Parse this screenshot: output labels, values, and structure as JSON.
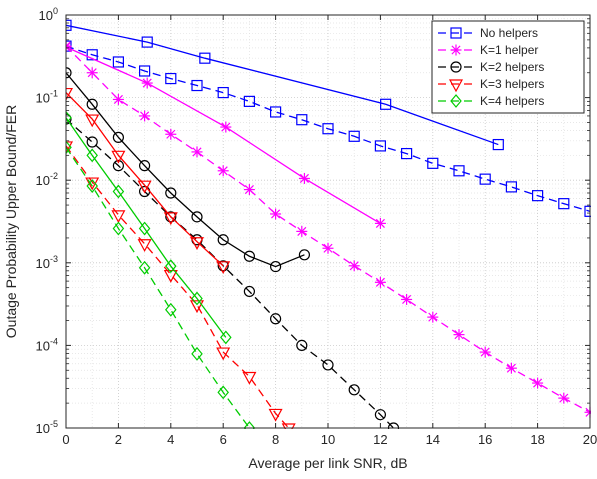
{
  "chart_data": {
    "type": "line",
    "title": "",
    "xlabel": "Average per link SNR, dB",
    "ylabel": "Outage Probability Upper Bound/FER",
    "xlim": [
      0,
      20
    ],
    "ylim": [
      1e-05,
      1
    ],
    "yscale": "log",
    "grid": "major and minor, dotted",
    "legend_position": "top-right",
    "xticks": [
      0,
      2,
      4,
      6,
      8,
      10,
      12,
      14,
      16,
      18,
      20
    ],
    "xtick_labels": [
      "0",
      "2",
      "4",
      "6",
      "8",
      "10",
      "12",
      "14",
      "16",
      "18",
      "20"
    ],
    "yticks": [
      {
        "value": 1,
        "base": "10",
        "exp": "0"
      },
      {
        "value": 0.1,
        "base": "10",
        "exp": "-1"
      },
      {
        "value": 0.01,
        "base": "10",
        "exp": "-2"
      },
      {
        "value": 0.001,
        "base": "10",
        "exp": "-3"
      },
      {
        "value": 0.0001,
        "base": "10",
        "exp": "-4"
      },
      {
        "value": 1e-05,
        "base": "10",
        "exp": "-5"
      }
    ],
    "legend": [
      {
        "label": "No helpers",
        "color": "#0000ff",
        "marker": "square",
        "dash": "dashed"
      },
      {
        "label": "K=1 helper",
        "color": "#ff00ff",
        "marker": "star",
        "dash": "dashed"
      },
      {
        "label": "K=2 helpers",
        "color": "#000000",
        "marker": "circle",
        "dash": "dashed"
      },
      {
        "label": "K=3 helpers",
        "color": "#ff0000",
        "marker": "triangle-down",
        "dash": "dashed"
      },
      {
        "label": "K=4 helpers",
        "color": "#00cc00",
        "marker": "diamond",
        "dash": "dashed"
      }
    ],
    "series": [
      {
        "color": "#0000ff",
        "marker": "square",
        "dash": "solid",
        "x": [
          0,
          3.1,
          5.3,
          12.2,
          16.5
        ],
        "y": [
          0.75,
          0.47,
          0.3,
          0.083,
          0.027
        ]
      },
      {
        "color": "#0000ff",
        "marker": "square",
        "dash": "dashed",
        "x": [
          0,
          1,
          2,
          3,
          4,
          5,
          6,
          7,
          8,
          9,
          10,
          11,
          12,
          13,
          14,
          15,
          16,
          17,
          18,
          19,
          20
        ],
        "y": [
          0.42,
          0.33,
          0.27,
          0.21,
          0.17,
          0.14,
          0.115,
          0.09,
          0.067,
          0.054,
          0.042,
          0.034,
          0.026,
          0.021,
          0.016,
          0.013,
          0.0103,
          0.0083,
          0.0065,
          0.0052,
          0.0042
        ]
      },
      {
        "color": "#ff00ff",
        "marker": "star",
        "dash": "solid",
        "x": [
          0,
          3.1,
          6.1,
          9.1,
          12.0
        ],
        "y": [
          0.41,
          0.15,
          0.044,
          0.0105,
          0.003
        ]
      },
      {
        "color": "#ff00ff",
        "marker": "star",
        "dash": "dashed",
        "x": [
          0,
          1,
          2,
          3,
          4,
          5,
          6,
          7,
          8,
          9,
          10,
          11,
          12,
          13,
          14,
          15,
          16,
          17,
          18,
          19,
          20
        ],
        "y": [
          0.42,
          0.2,
          0.095,
          0.06,
          0.036,
          0.022,
          0.013,
          0.0077,
          0.0039,
          0.0024,
          0.0015,
          0.00092,
          0.00058,
          0.00036,
          0.00022,
          0.000135,
          8.3e-05,
          5.3e-05,
          3.5e-05,
          2.3e-05,
          1.55e-05
        ]
      },
      {
        "color": "#000000",
        "marker": "circle",
        "dash": "solid",
        "x": [
          0,
          1,
          2,
          3,
          4,
          5,
          6,
          7,
          8,
          9.1
        ],
        "y": [
          0.2,
          0.083,
          0.033,
          0.015,
          0.007,
          0.0036,
          0.0019,
          0.0012,
          0.0009,
          0.00125
        ]
      },
      {
        "color": "#000000",
        "marker": "circle",
        "dash": "dashed",
        "x": [
          0,
          1,
          2,
          3,
          4,
          5,
          6,
          7,
          8,
          9,
          10,
          11,
          12,
          12.5
        ],
        "y": [
          0.055,
          0.029,
          0.015,
          0.0073,
          0.0036,
          0.0019,
          0.00092,
          0.00045,
          0.00021,
          0.0001,
          5.8e-05,
          2.9e-05,
          1.45e-05,
          1e-05
        ]
      },
      {
        "color": "#ff0000",
        "marker": "triangle-down",
        "dash": "solid",
        "x": [
          0,
          1,
          2,
          3,
          4,
          5,
          6
        ],
        "y": [
          0.115,
          0.055,
          0.02,
          0.0087,
          0.0036,
          0.0018,
          0.00092
        ]
      },
      {
        "color": "#ff0000",
        "marker": "triangle-down",
        "dash": "dashed",
        "x": [
          0,
          1,
          2,
          3,
          4,
          5,
          6,
          7,
          8,
          8.5
        ],
        "y": [
          0.026,
          0.0095,
          0.0038,
          0.0017,
          0.00072,
          0.00031,
          8.3e-05,
          4.2e-05,
          1.5e-05,
          1e-05
        ]
      },
      {
        "color": "#00cc00",
        "marker": "diamond",
        "dash": "solid",
        "x": [
          0,
          1,
          2,
          3,
          4,
          5,
          6.1
        ],
        "y": [
          0.057,
          0.02,
          0.0073,
          0.0026,
          0.00091,
          0.00037,
          0.000125
        ]
      },
      {
        "color": "#00cc00",
        "marker": "diamond",
        "dash": "dashed",
        "x": [
          0,
          1,
          2,
          3,
          4,
          5,
          6,
          7
        ],
        "y": [
          0.025,
          0.0085,
          0.0026,
          0.00087,
          0.00027,
          7.9e-05,
          2.7e-05,
          1e-05
        ]
      }
    ]
  }
}
